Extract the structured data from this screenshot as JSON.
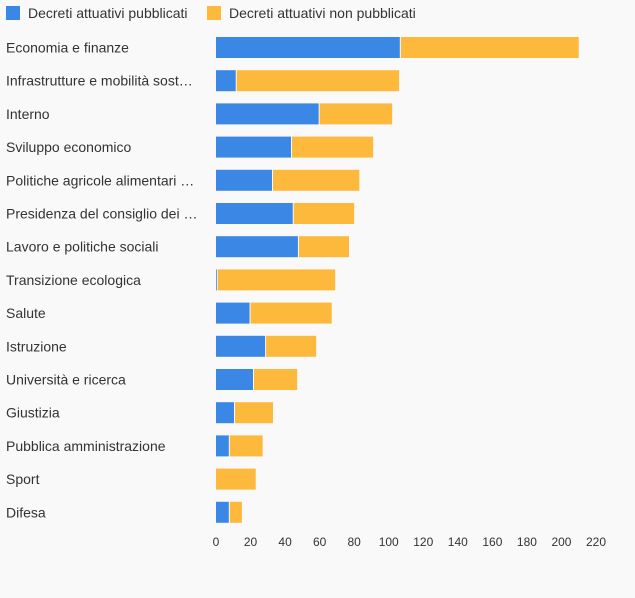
{
  "chart_data": {
    "type": "bar",
    "orientation": "horizontal",
    "stacked": true,
    "legend_position": "top-left",
    "grid": false,
    "categories": [
      "Economia e finanze",
      "Infrastrutture e mobilità sost…",
      "Interno",
      "Sviluppo economico",
      "Politiche agricole alimentari …",
      "Presidenza del consiglio dei …",
      "Lavoro e politiche sociali",
      "Transizione ecologica",
      "Salute",
      "Istruzione",
      "Università e ricerca",
      "Giustizia",
      "Pubblica amministrazione",
      "Sport",
      "Difesa"
    ],
    "series": [
      {
        "name": "Decreti attuativi pubblicati",
        "color": "#3a87e6",
        "values": [
          107,
          12,
          60,
          44,
          33,
          45,
          48,
          1,
          20,
          29,
          22,
          11,
          8,
          0,
          8
        ]
      },
      {
        "name": "Decreti attuativi non pubblicati",
        "color": "#fdb93c",
        "values": [
          103,
          94,
          42,
          47,
          50,
          35,
          29,
          68,
          47,
          29,
          25,
          22,
          19,
          23,
          7
        ]
      }
    ],
    "xlim": [
      0,
      220
    ],
    "xticks": [
      0,
      20,
      40,
      60,
      80,
      100,
      120,
      140,
      160,
      180,
      200,
      220
    ],
    "title": "",
    "xlabel": "",
    "ylabel": ""
  }
}
